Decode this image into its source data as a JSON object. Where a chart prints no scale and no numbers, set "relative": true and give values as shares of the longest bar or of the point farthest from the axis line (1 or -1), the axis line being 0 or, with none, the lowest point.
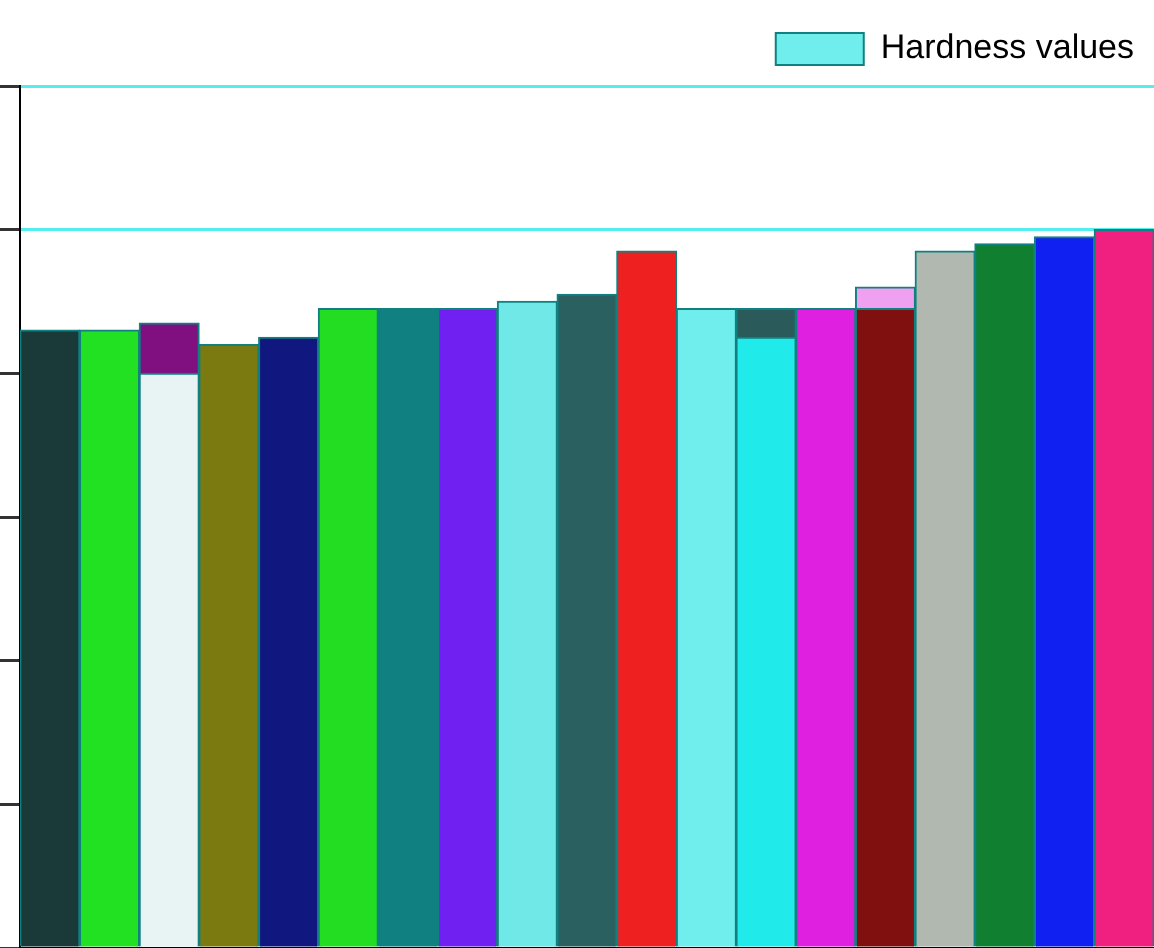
{
  "chart_data": {
    "type": "bar",
    "relative": true,
    "stacked": true,
    "grid": "y",
    "legend": "top right",
    "categories": [
      null,
      null,
      null,
      null,
      null,
      null,
      null,
      null,
      null,
      null,
      null,
      null,
      null,
      null,
      null,
      null,
      null,
      null,
      null
    ],
    "series": [
      {
        "name": "Hardness values",
        "color": "#70eeee",
        "colors": [
          "#1a3a3a",
          "#22e022",
          "#e8f4f4",
          "#7a7a10",
          "#101880",
          "#22dd22",
          "#108080",
          "#7020f0",
          "#70e8e8",
          "#2a6060",
          "#ee2020",
          "#70eeee",
          "#20eaea",
          "#e020e0",
          "#801010",
          "#b0b8b0",
          "#108030",
          "#1020f0",
          "#f02080"
        ],
        "values": [
          0.86,
          0.86,
          0.8,
          0.84,
          0.85,
          0.89,
          0.89,
          0.89,
          0.9,
          0.91,
          0.97,
          0.89,
          0.85,
          0.89,
          0.89,
          0.97,
          0.98,
          0.99,
          1
        ]
      },
      {
        "colors": [
          null,
          null,
          "#801080",
          null,
          null,
          null,
          null,
          null,
          null,
          null,
          null,
          null,
          "#2a5a5a",
          null,
          "#f0a0f0",
          null,
          null,
          null,
          null
        ],
        "values": [
          null,
          null,
          0.07,
          null,
          null,
          null,
          null,
          null,
          null,
          null,
          null,
          null,
          0.04,
          null,
          0.03,
          null,
          null,
          null,
          null
        ]
      }
    ]
  }
}
